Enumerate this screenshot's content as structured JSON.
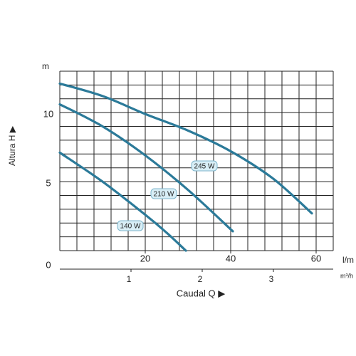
{
  "chart_data": {
    "type": "line",
    "y_unit": "m",
    "x_unit": "l/m",
    "x2_unit": "m³/h",
    "ylabel": "Altura  H ▶",
    "xlabel": "Caudal  Q ▶",
    "xlim": [
      0,
      64
    ],
    "ylim": [
      0,
      13
    ],
    "x2lim": [
      0,
      3.84
    ],
    "xticks": [
      20,
      40,
      60
    ],
    "yticks": [
      0,
      5,
      10
    ],
    "x2ticks": [
      1,
      2,
      3
    ],
    "grid": true,
    "grid_x": [
      0,
      4,
      8,
      12,
      16,
      20,
      24,
      28,
      32,
      36,
      40,
      44,
      48,
      52,
      56,
      60,
      64
    ],
    "grid_y": [
      0,
      1,
      2,
      3,
      4,
      5,
      6,
      7,
      8,
      9,
      10,
      11,
      12,
      13
    ],
    "series": [
      {
        "name": "245 W",
        "color": "#2b7a99",
        "x": [
          0,
          10,
          20,
          30,
          40,
          50,
          59
        ],
        "values": [
          12.1,
          11.2,
          9.9,
          8.7,
          7.2,
          5.2,
          2.7
        ]
      },
      {
        "name": "210 W",
        "color": "#2b7a99",
        "x": [
          0,
          10,
          20,
          30,
          40.5
        ],
        "values": [
          10.6,
          9.0,
          6.9,
          4.4,
          1.4
        ]
      },
      {
        "name": "140 W",
        "color": "#2b7a99",
        "x": [
          0,
          10,
          20,
          25,
          29.5
        ],
        "values": [
          7.1,
          5.0,
          2.6,
          1.3,
          0
        ]
      }
    ]
  }
}
